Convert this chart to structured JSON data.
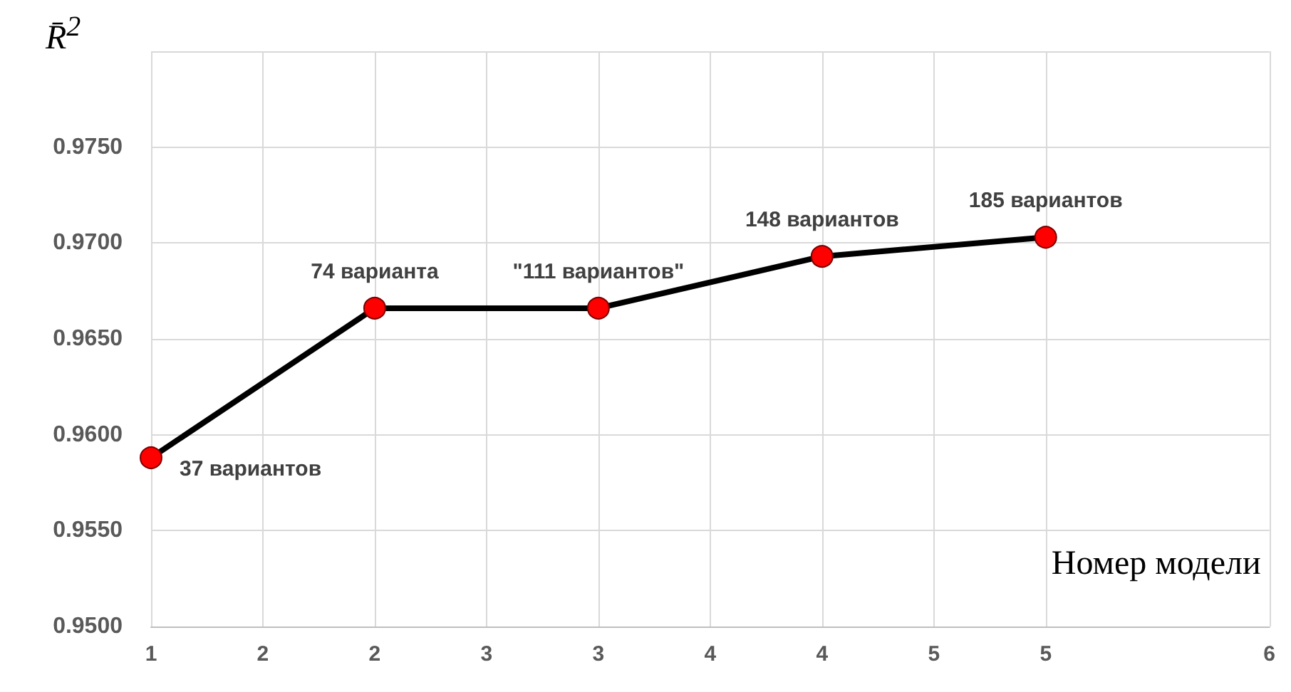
{
  "chart_data": {
    "type": "line",
    "ylabel": "R̄$^{2}$",
    "xlabel": "Номер модели",
    "x": [
      1,
      2,
      3,
      4,
      5
    ],
    "series": [
      {
        "color": "#000000",
        "colors": [
          "#ff0000",
          "#ff0000",
          "#ff0000",
          "#ff0000",
          "#ff0000"
        ],
        "values": [
          0.9588,
          0.9666,
          0.9666,
          0.9693,
          0.9703
        ]
      }
    ],
    "annotations": [
      {
        "text": "37 вариантов",
        "x": 1,
        "y": 0.9588
      },
      {
        "text": "74 варианта",
        "x": 2,
        "y": 0.9666
      },
      {
        "text": "\"111 вариантов\"",
        "x": 3,
        "y": 0.9666
      },
      {
        "text": "148 вариантов",
        "x": 4,
        "y": 0.9693
      },
      {
        "text": "185 вариантов",
        "x": 5,
        "y": 0.9703
      }
    ],
    "xlim": [
      1,
      6
    ],
    "xticks": [
      1,
      {
        "value": 1.5,
        "label": "2"
      },
      2,
      {
        "value": 2.5,
        "label": "3"
      },
      3,
      {
        "value": 3.5,
        "label": "4"
      },
      4,
      {
        "value": 4.5,
        "label": "5"
      },
      5,
      6
    ],
    "ylim": [
      0.95,
      0.98
    ],
    "yticks": [
      {
        "value": 0.95,
        "label": "0.9500"
      },
      {
        "value": 0.955,
        "label": "0.9550"
      },
      {
        "value": 0.96,
        "label": "0.9600"
      },
      {
        "value": 0.965,
        "label": "0.9650"
      },
      {
        "value": 0.97,
        "label": "0.9700"
      },
      {
        "value": 0.975,
        "label": "0.9750"
      },
      {
        "value": 0.98,
        "label": null
      }
    ],
    "grid": true,
    "marker": "circle",
    "line_style": "solid"
  }
}
